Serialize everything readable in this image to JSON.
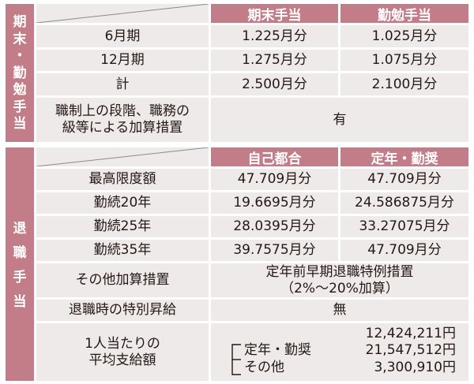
{
  "section1": {
    "side_label": [
      "期",
      "末",
      "・",
      "勤",
      "勉",
      "手",
      "当"
    ],
    "headers": [
      "期末手当",
      "勤勉手当"
    ],
    "rows": [
      {
        "label": "6月期",
        "values": [
          "1.225月分",
          "1.025月分"
        ]
      },
      {
        "label": "12月期",
        "values": [
          "1.275月分",
          "1.075月分"
        ]
      },
      {
        "label": "計",
        "values": [
          "2.500月分",
          "2.100月分"
        ]
      }
    ],
    "additional": {
      "label_lines": [
        "職制上の段階、職務の",
        "級等による加算措置"
      ],
      "value": "有"
    }
  },
  "section2": {
    "side_label": [
      "退",
      "職",
      "手",
      "当"
    ],
    "headers": [
      "自己都合",
      "定年・勤奨"
    ],
    "rows": [
      {
        "label": "最高限度額",
        "values": [
          "47.709月分",
          "47.709月分"
        ]
      },
      {
        "label": "勤続20年",
        "values": [
          "19.6695月分",
          "24.586875月分"
        ]
      },
      {
        "label": "勤続25年",
        "values": [
          "28.0395月分",
          "33.27075月分"
        ]
      },
      {
        "label": "勤続35年",
        "values": [
          "39.7575月分",
          "47.709月分"
        ]
      }
    ],
    "other": {
      "label": "その他加算措置",
      "value_lines": [
        "定年前早期退職特例措置",
        "（2%～20%加算）"
      ]
    },
    "special": {
      "label": "退職時の特別昇給",
      "value": "無"
    },
    "average": {
      "label_lines": [
        "1人当たりの",
        "平均支給額"
      ],
      "sub_labels": [
        "定年・勤奨",
        "その他"
      ],
      "amounts": [
        "12,424,211円",
        "21,547,512円",
        "3,300,910円"
      ]
    }
  }
}
